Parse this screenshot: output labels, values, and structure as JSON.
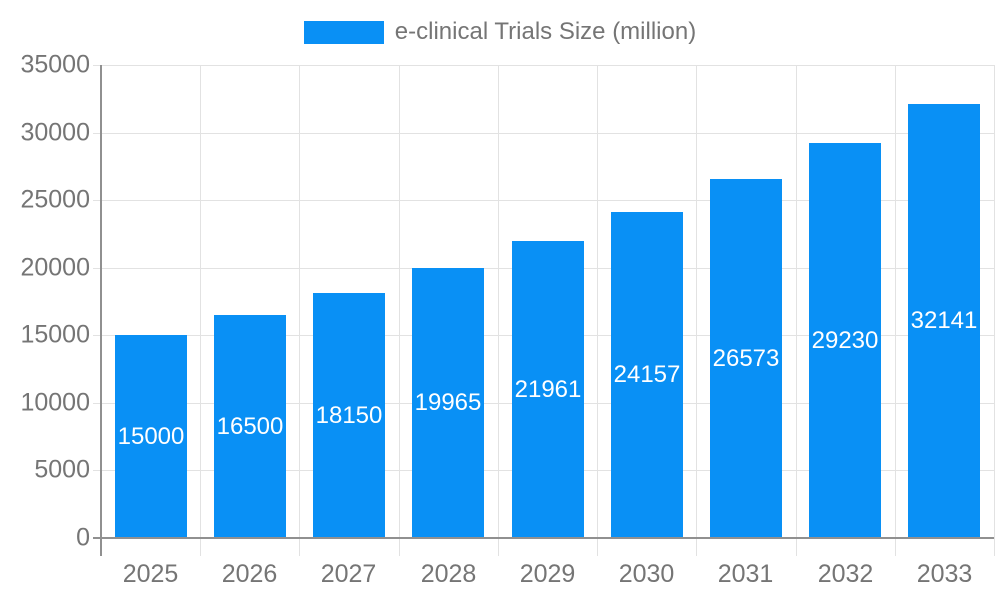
{
  "legend": {
    "label": "e-clinical Trials Size (million)"
  },
  "colors": {
    "bar": "#0990f5",
    "grid": "#e2e2e2",
    "axis": "#909090",
    "axis_text": "#757575",
    "value_label_text": "#ffffff",
    "background": "#ffffff"
  },
  "chart_data": {
    "type": "bar",
    "title": "e-clinical Trials Size (million)",
    "categories": [
      "2025",
      "2026",
      "2027",
      "2028",
      "2029",
      "2030",
      "2031",
      "2032",
      "2033"
    ],
    "values": [
      15000,
      16500,
      18150,
      19965,
      21961,
      24157,
      26573,
      29230,
      32141
    ],
    "series_name": "e-clinical Trials Size (million)",
    "xlabel": "",
    "ylabel": "",
    "ylim": [
      0,
      35000
    ],
    "ytick_step": 5000,
    "yticks": [
      0,
      5000,
      10000,
      15000,
      20000,
      25000,
      30000,
      35000
    ],
    "grid": true,
    "legend_position": "top",
    "value_labels": "inside-center",
    "bar_color": "#0990f5"
  }
}
